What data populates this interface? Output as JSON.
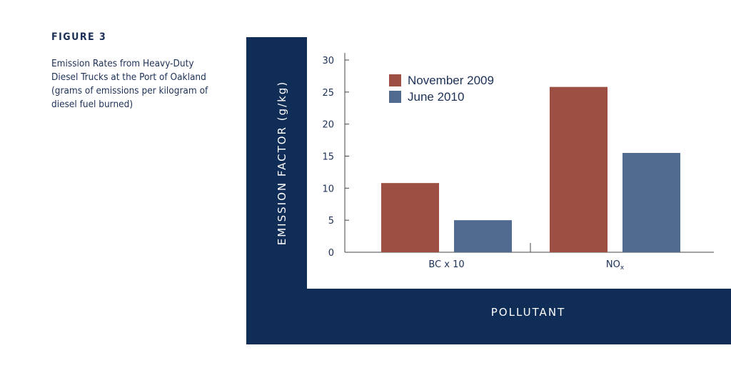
{
  "figure": {
    "label": "FIGURE 3",
    "caption_lines": [
      "Emission Rates from Heavy-Duty",
      "Diesel Trucks at the Port of Oakland",
      "(grams of emissions per kilogram of",
      "diesel fuel burned)"
    ]
  },
  "colors": {
    "frame": "#0f2d57",
    "november": "#9c4f42",
    "june": "#506a90",
    "axis": "#444444",
    "text": "#1c3056"
  },
  "chart_data": {
    "type": "bar",
    "title": "",
    "xlabel": "POLLUTANT",
    "ylabel": "EMISSION FACTOR (g/kg)",
    "categories": [
      "BC x 10",
      "NO"
    ],
    "category_subscripts": [
      "",
      "x"
    ],
    "series": [
      {
        "name": "November 2009",
        "values": [
          10.8,
          25.8
        ]
      },
      {
        "name": "June 2010",
        "values": [
          5.0,
          15.5
        ]
      }
    ],
    "ylim": [
      0,
      30
    ],
    "yticks": [
      0,
      5,
      10,
      15,
      20,
      25,
      30
    ],
    "grid": false,
    "legend_position": "top-left"
  }
}
